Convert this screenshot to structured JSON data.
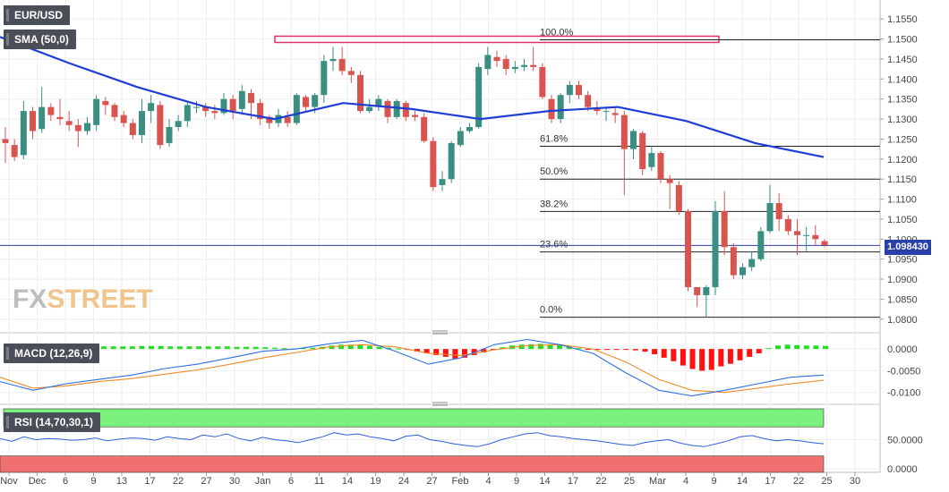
{
  "header": {
    "symbol": "EUR/USD",
    "sma_label": "SMA (50,0)",
    "macd_label": "MACD (12,26,9)",
    "rsi_label": "RSI (14,70,30,1)",
    "last_price": "1.098430",
    "logo_fx": "FX",
    "logo_street": "STREET"
  },
  "colors": {
    "bull": "#3a8f82",
    "bear": "#d9534f",
    "sma": "#1f3ed6",
    "macd_line": "#2f6fe0",
    "signal_line": "#f08a24",
    "hist_pos": "#22dd22",
    "hist_neg": "#ff1111",
    "rsi_line": "#2f5fe0",
    "rsi_over": "#7cf07c",
    "rsi_under": "#f07070",
    "fib_box": "#e0306a"
  },
  "chart_data": [
    {
      "type": "candlestick",
      "title": "EUR/USD",
      "ylim": [
        1.0775,
        1.1575
      ],
      "y_ticks": [
        "1.1550",
        "1.1500",
        "1.1450",
        "1.1400",
        "1.1350",
        "1.1300",
        "1.1250",
        "1.1200",
        "1.1150",
        "1.1100",
        "1.1050",
        "1.1000",
        "1.0950",
        "1.0900",
        "1.0850",
        "1.0800"
      ],
      "x_ticks": [
        "Nov",
        "Dec",
        "6",
        "9",
        "13",
        "17",
        "22",
        "27",
        "30",
        "Jan",
        "6",
        "11",
        "14",
        "19",
        "24",
        "27",
        "Feb",
        "4",
        "9",
        "14",
        "17",
        "22",
        "25",
        "Mar",
        "4",
        "9",
        "14",
        "17",
        "22",
        "25",
        "30"
      ],
      "candles": [
        [
          1.125,
          1.124,
          1.128,
          1.119
        ],
        [
          1.1235,
          1.1205,
          1.125,
          1.1195
        ],
        [
          1.121,
          1.132,
          1.1345,
          1.12
        ],
        [
          1.132,
          1.127,
          1.133,
          1.125
        ],
        [
          1.1275,
          1.133,
          1.138,
          1.1265
        ],
        [
          1.133,
          1.131,
          1.134,
          1.1295
        ],
        [
          1.1305,
          1.13,
          1.135,
          1.1285
        ],
        [
          1.1295,
          1.1285,
          1.132,
          1.127
        ],
        [
          1.1285,
          1.127,
          1.13,
          1.123
        ],
        [
          1.127,
          1.129,
          1.1305,
          1.126
        ],
        [
          1.1285,
          1.135,
          1.136,
          1.127
        ],
        [
          1.1345,
          1.1335,
          1.1355,
          1.131
        ],
        [
          1.1335,
          1.1305,
          1.134,
          1.1295
        ],
        [
          1.131,
          1.129,
          1.132,
          1.128
        ],
        [
          1.129,
          1.126,
          1.13,
          1.125
        ],
        [
          1.126,
          1.132,
          1.135,
          1.124
        ],
        [
          1.132,
          1.134,
          1.136,
          1.129
        ],
        [
          1.1335,
          1.1235,
          1.1345,
          1.1225
        ],
        [
          1.124,
          1.128,
          1.13,
          1.123
        ],
        [
          1.128,
          1.1295,
          1.131,
          1.127
        ],
        [
          1.1295,
          1.1335,
          1.1345,
          1.128
        ],
        [
          1.133,
          1.133,
          1.1345,
          1.1315
        ],
        [
          1.133,
          1.132,
          1.134,
          1.1305
        ],
        [
          1.132,
          1.1315,
          1.1335,
          1.13
        ],
        [
          1.1315,
          1.135,
          1.1365,
          1.131
        ],
        [
          1.135,
          1.132,
          1.136,
          1.13
        ],
        [
          1.1325,
          1.137,
          1.1385,
          1.131
        ],
        [
          1.1365,
          1.134,
          1.1375,
          1.13
        ],
        [
          1.134,
          1.13,
          1.135,
          1.1285
        ],
        [
          1.1305,
          1.129,
          1.131,
          1.1275
        ],
        [
          1.129,
          1.131,
          1.1325,
          1.128
        ],
        [
          1.1305,
          1.129,
          1.132,
          1.128
        ],
        [
          1.129,
          1.136,
          1.1365,
          1.1285
        ],
        [
          1.1355,
          1.133,
          1.136,
          1.132
        ],
        [
          1.133,
          1.136,
          1.1365,
          1.1315
        ],
        [
          1.136,
          1.1445,
          1.146,
          1.134
        ],
        [
          1.1445,
          1.145,
          1.148,
          1.142
        ],
        [
          1.145,
          1.142,
          1.148,
          1.141
        ],
        [
          1.142,
          1.141,
          1.143,
          1.139
        ],
        [
          1.141,
          1.132,
          1.142,
          1.1315
        ],
        [
          1.132,
          1.133,
          1.135,
          1.1315
        ],
        [
          1.133,
          1.135,
          1.136,
          1.132
        ],
        [
          1.1345,
          1.1305,
          1.135,
          1.129
        ],
        [
          1.1305,
          1.1345,
          1.135,
          1.13
        ],
        [
          1.134,
          1.1305,
          1.1345,
          1.1295
        ],
        [
          1.131,
          1.1305,
          1.132,
          1.1295
        ],
        [
          1.1305,
          1.1245,
          1.1315,
          1.124
        ],
        [
          1.1245,
          1.113,
          1.1255,
          1.112
        ],
        [
          1.1135,
          1.115,
          1.117,
          1.112
        ],
        [
          1.115,
          1.124,
          1.1245,
          1.114
        ],
        [
          1.1235,
          1.127,
          1.128,
          1.123
        ],
        [
          1.127,
          1.128,
          1.129,
          1.1265
        ],
        [
          1.128,
          1.143,
          1.144,
          1.1275
        ],
        [
          1.1425,
          1.146,
          1.148,
          1.141
        ],
        [
          1.1455,
          1.1445,
          1.147,
          1.143
        ],
        [
          1.145,
          1.1425,
          1.146,
          1.141
        ],
        [
          1.1425,
          1.143,
          1.1445,
          1.1415
        ],
        [
          1.143,
          1.1435,
          1.145,
          1.142
        ],
        [
          1.1435,
          1.143,
          1.148,
          1.142
        ],
        [
          1.143,
          1.1355,
          1.144,
          1.135
        ],
        [
          1.135,
          1.13,
          1.136,
          1.129
        ],
        [
          1.13,
          1.136,
          1.1365,
          1.129
        ],
        [
          1.136,
          1.1385,
          1.1395,
          1.134
        ],
        [
          1.1385,
          1.136,
          1.1395,
          1.135
        ],
        [
          1.136,
          1.133,
          1.137,
          1.132
        ],
        [
          1.1325,
          1.132,
          1.1345,
          1.131
        ],
        [
          1.132,
          1.132,
          1.133,
          1.1295
        ],
        [
          1.1315,
          1.131,
          1.133,
          1.129
        ],
        [
          1.131,
          1.1225,
          1.132,
          1.111
        ],
        [
          1.1225,
          1.127,
          1.1275,
          1.12
        ],
        [
          1.1265,
          1.1175,
          1.127,
          1.116
        ],
        [
          1.118,
          1.1215,
          1.123,
          1.117
        ],
        [
          1.1215,
          1.115,
          1.122,
          1.114
        ],
        [
          1.115,
          1.114,
          1.116,
          1.1075
        ],
        [
          1.1135,
          1.107,
          1.1145,
          1.106
        ],
        [
          1.107,
          1.088,
          1.1075,
          1.087
        ],
        [
          1.088,
          1.086,
          1.088,
          1.083
        ],
        [
          1.086,
          1.088,
          1.0885,
          1.0805
        ],
        [
          1.088,
          1.107,
          1.1095,
          1.086
        ],
        [
          1.107,
          1.098,
          1.112,
          1.096
        ],
        [
          1.098,
          1.091,
          1.099,
          1.09
        ],
        [
          1.091,
          1.093,
          1.094,
          1.09
        ],
        [
          1.093,
          1.095,
          1.097,
          1.092
        ],
        [
          1.095,
          1.102,
          1.103,
          1.0945
        ],
        [
          1.102,
          1.109,
          1.1135,
          1.1015
        ],
        [
          1.109,
          1.105,
          1.1115,
          1.102
        ],
        [
          1.105,
          1.102,
          1.106,
          1.101
        ],
        [
          1.102,
          1.101,
          1.105,
          1.096
        ],
        [
          1.101,
          1.101,
          1.103,
          1.097
        ],
        [
          1.101,
          1.1,
          1.1035,
          1.0985
        ],
        [
          1.0995,
          1.0985,
          1.1,
          1.098
        ]
      ],
      "sma_50": [
        1.1505,
        1.144,
        1.138,
        1.133,
        1.13,
        1.134,
        1.1325,
        1.13,
        1.132,
        1.133,
        1.1295,
        1.124,
        1.1205
      ],
      "current_price": 1.09843,
      "fibonacci": [
        {
          "label": "100.0%",
          "value": 1.1498
        },
        {
          "label": "61.8%",
          "value": 1.1232
        },
        {
          "label": "50.0%",
          "value": 1.115
        },
        {
          "label": "38.2%",
          "value": 1.1069
        },
        {
          "label": "23.6%",
          "value": 1.0968
        },
        {
          "label": "0.0%",
          "value": 1.0805
        }
      ]
    },
    {
      "type": "bar+line",
      "title": "MACD (12,26,9)",
      "ylim": [
        -0.0115,
        0.0025
      ],
      "y_ticks": [
        "0.0000",
        "-0.0050",
        "-0.0100"
      ],
      "histogram": [
        0.0003,
        0.0004,
        0.0005,
        0.0005,
        0.0005,
        0.0005,
        0.0006,
        0.0006,
        0.0006,
        0.0006,
        0.0006,
        0.0006,
        0.0006,
        0.0006,
        0.0007,
        0.0007,
        0.0007,
        0.0006,
        0.0006,
        0.0006,
        0.0006,
        0.0006,
        0.0006,
        0.0006,
        0.0005,
        0.0005,
        0.0005,
        0.0004,
        0.0003,
        0.0002,
        0.0001,
        0.0002,
        0.0003,
        0.0005,
        0.0008,
        0.001,
        0.001,
        0.0009,
        0.0007,
        0.0005,
        0.0003,
        0.0001,
        -0.0002,
        -0.0006,
        -0.001,
        -0.0014,
        -0.0018,
        -0.0022,
        -0.002,
        -0.0014,
        -0.0008,
        -0.0002,
        0.0004,
        0.0008,
        0.001,
        0.0011,
        0.0012,
        0.0011,
        0.0009,
        0.0006,
        0.0002,
        -0.0001,
        -0.0002,
        -0.0002,
        -0.0002,
        -0.0002,
        -0.0003,
        -0.0006,
        -0.0012,
        -0.002,
        -0.0028,
        -0.0038,
        -0.0046,
        -0.005,
        -0.0048,
        -0.004,
        -0.0034,
        -0.0026,
        -0.0018,
        -0.001,
        0.0002,
        0.0008,
        0.001,
        0.0009,
        0.0008,
        0.0008,
        0.0007
      ],
      "macd_line": [
        -0.0075,
        -0.0095,
        -0.008,
        -0.007,
        -0.006,
        -0.0045,
        -0.0035,
        -0.002,
        -0.0005,
        0.0,
        0.0012,
        0.002,
        -0.0005,
        -0.0035,
        -0.002,
        0.001,
        0.0022,
        0.001,
        -0.001,
        -0.0055,
        -0.0095,
        -0.0108,
        -0.0095,
        -0.008,
        -0.0065,
        -0.006
      ],
      "signal_line": [
        -0.0065,
        -0.009,
        -0.0085,
        -0.0075,
        -0.0068,
        -0.0058,
        -0.0048,
        -0.0035,
        -0.002,
        -0.0008,
        0.0005,
        0.001,
        0.0005,
        -0.001,
        -0.0015,
        -0.0002,
        0.0008,
        0.001,
        0.0,
        -0.003,
        -0.007,
        -0.0095,
        -0.01,
        -0.009,
        -0.008,
        -0.0072
      ]
    },
    {
      "type": "line",
      "title": "RSI (14,70,30,1)",
      "ylim": [
        0,
        100
      ],
      "y_ticks": [
        "50.0000",
        "0.0000"
      ],
      "rsi": [
        52,
        47,
        55,
        50,
        52,
        51,
        49,
        50,
        53,
        48,
        51,
        53,
        52,
        49,
        55,
        52,
        50,
        58,
        55,
        60,
        52,
        48,
        54,
        50,
        48,
        45,
        50,
        55,
        62,
        58,
        60,
        55,
        52,
        48,
        56,
        58,
        50,
        47,
        43,
        40,
        38,
        43,
        50,
        55,
        60,
        62,
        57,
        55,
        52,
        50,
        48,
        45,
        42,
        40,
        45,
        48,
        50,
        44,
        40,
        38,
        43,
        48,
        55,
        57,
        52,
        48,
        50,
        48,
        45,
        43
      ]
    }
  ]
}
